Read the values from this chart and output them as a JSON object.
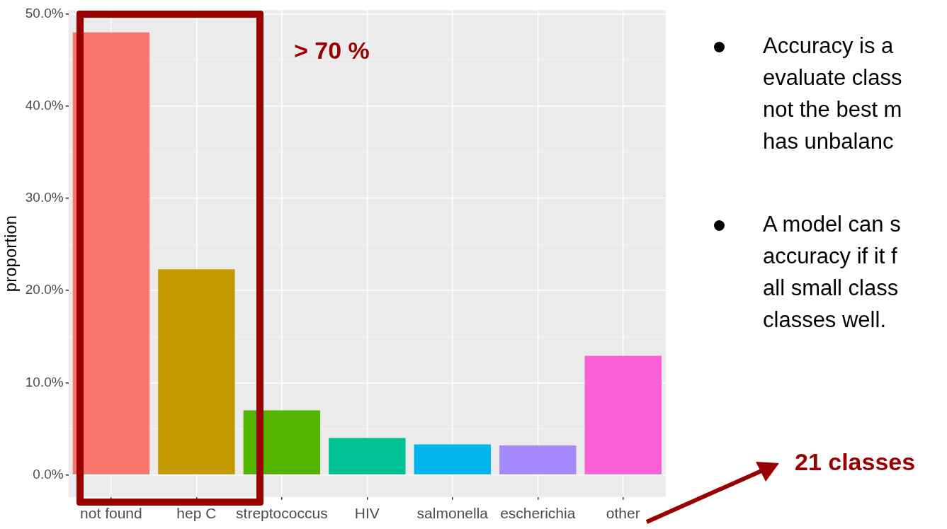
{
  "chart_data": {
    "type": "bar",
    "ylabel": "proportion",
    "categories": [
      "not found",
      "hep C",
      "streptococcus",
      "HIV",
      "salmonella",
      "escherichia",
      "other"
    ],
    "values": [
      48.0,
      22.3,
      7.0,
      4.0,
      3.3,
      3.2,
      12.9
    ],
    "colors": [
      "#f8766d",
      "#c49a00",
      "#53b400",
      "#00c094",
      "#00b6eb",
      "#a58aff",
      "#fb61d7"
    ],
    "ylim": [
      -2.4,
      50.4
    ],
    "yticks": [
      {
        "value": 0,
        "label": "0.0%"
      },
      {
        "value": 5,
        "label": null
      },
      {
        "value": 10,
        "label": "10.0%"
      },
      {
        "value": 15,
        "label": null
      },
      {
        "value": 20,
        "label": "20.0%"
      },
      {
        "value": 25,
        "label": null
      },
      {
        "value": 30,
        "label": "30.0%"
      },
      {
        "value": 35,
        "label": null
      },
      {
        "value": 40,
        "label": "40.0%"
      },
      {
        "value": 45,
        "label": null
      },
      {
        "value": 50,
        "label": "50.0%"
      }
    ],
    "grid": true,
    "annotations": [
      "> 70 %",
      "21 classes",
      "Accuracy is a\nevaluate class\nnot the best m\nhas unbalanc",
      "A model can s\naccuracy if it f\nall small class\nclasses well."
    ]
  }
}
